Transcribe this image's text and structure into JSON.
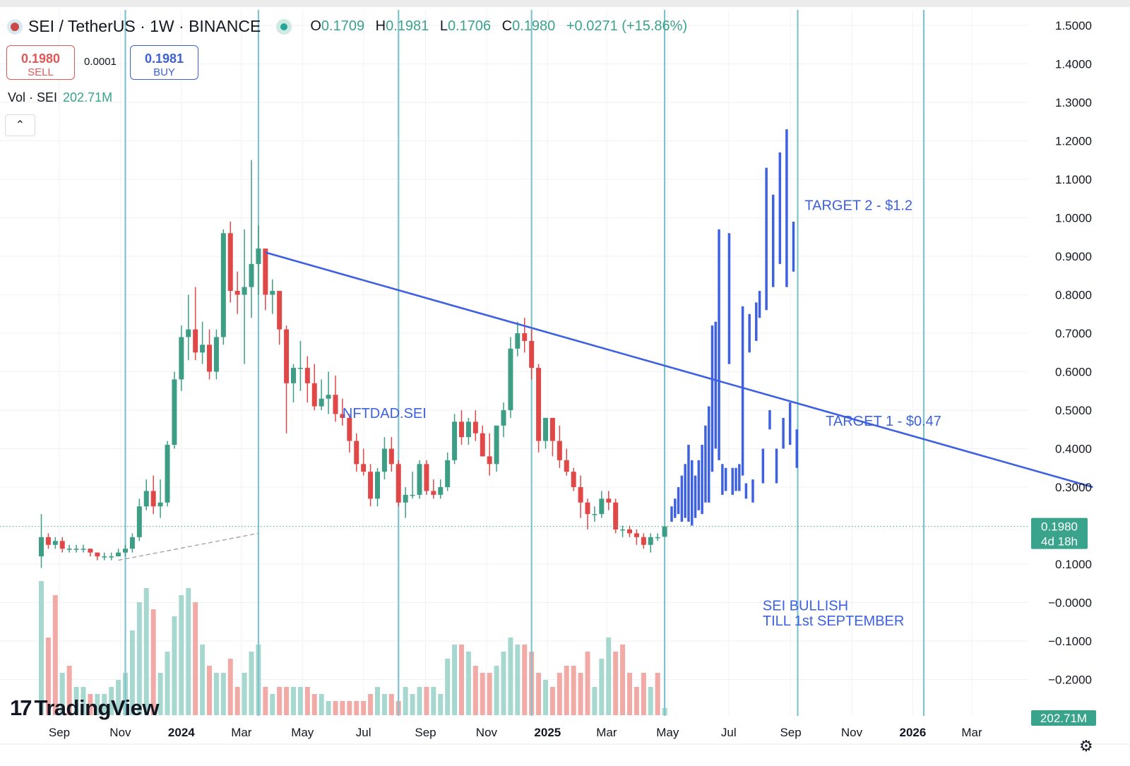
{
  "header": {
    "symbol_title": "SEI / TetherUS · 1W · BINANCE",
    "open_label": "O",
    "open_value": "0.1709",
    "high_label": "H",
    "high_value": "0.1981",
    "low_label": "L",
    "low_value": "0.1706",
    "close_label": "C",
    "close_value": "0.1980",
    "change": "+0.0271 (+15.86%)"
  },
  "trade": {
    "sell_price": "0.1980",
    "sell_label": "SELL",
    "spread": "0.0001",
    "buy_price": "0.1981",
    "buy_label": "BUY"
  },
  "volume_legend": {
    "label": "Vol · SEI",
    "value": "202.71M"
  },
  "collapse_icon": "chevron-up-icon",
  "brand": {
    "name": "TradingView",
    "icon": "tradingview-logo-icon"
  },
  "settings_icon": "gear-icon",
  "colors": {
    "up": "#3d9e85",
    "down": "#e04848",
    "up_vol": "#a7d8cf",
    "down_vol": "#f1aaa6",
    "drawing": "#3d61e0",
    "cycle_line": "#7fc4cc",
    "price_badge": "#3aa38c"
  },
  "chart_data": {
    "type": "candlestick",
    "timeframe": "1W",
    "yaxis": {
      "ticks": [
        "1.5000",
        "1.4000",
        "1.3000",
        "1.2000",
        "1.1000",
        "1.0000",
        "0.9000",
        "0.8000",
        "0.7000",
        "0.6000",
        "0.5000",
        "0.4000",
        "0.3000",
        "0.1000",
        "−0.0000",
        "−0.1000",
        "−0.2000"
      ],
      "ylim": [
        -0.2,
        1.5
      ],
      "current_price_label": "0.1980",
      "countdown_label": "4d 18h",
      "volume_label": "202.71M"
    },
    "xaxis": {
      "labels": [
        {
          "text": "Sep",
          "date": "2023-09-01",
          "bold": false
        },
        {
          "text": "Nov",
          "date": "2023-11-01",
          "bold": false
        },
        {
          "text": "2024",
          "date": "2024-01-01",
          "bold": true
        },
        {
          "text": "Mar",
          "date": "2024-03-01",
          "bold": false
        },
        {
          "text": "May",
          "date": "2024-05-01",
          "bold": false
        },
        {
          "text": "Jul",
          "date": "2024-07-01",
          "bold": false
        },
        {
          "text": "Sep",
          "date": "2024-09-01",
          "bold": false
        },
        {
          "text": "Nov",
          "date": "2024-11-01",
          "bold": false
        },
        {
          "text": "2025",
          "date": "2025-01-01",
          "bold": true
        },
        {
          "text": "Mar",
          "date": "2025-03-01",
          "bold": false
        },
        {
          "text": "May",
          "date": "2025-05-01",
          "bold": false
        },
        {
          "text": "Jul",
          "date": "2025-07-01",
          "bold": false
        },
        {
          "text": "Sep",
          "date": "2025-09-01",
          "bold": false
        },
        {
          "text": "Nov",
          "date": "2025-11-01",
          "bold": false
        },
        {
          "text": "2026",
          "date": "2026-01-01",
          "bold": true
        },
        {
          "text": "Mar",
          "date": "2026-03-01",
          "bold": false
        }
      ]
    },
    "candles_ohlc": [
      [
        0.12,
        0.23,
        0.09,
        0.17
      ],
      [
        0.17,
        0.18,
        0.14,
        0.15
      ],
      [
        0.15,
        0.17,
        0.14,
        0.16
      ],
      [
        0.16,
        0.17,
        0.13,
        0.14
      ],
      [
        0.14,
        0.15,
        0.13,
        0.14
      ],
      [
        0.14,
        0.15,
        0.13,
        0.14
      ],
      [
        0.14,
        0.15,
        0.13,
        0.14
      ],
      [
        0.14,
        0.14,
        0.12,
        0.13
      ],
      [
        0.13,
        0.13,
        0.11,
        0.12
      ],
      [
        0.12,
        0.13,
        0.11,
        0.12
      ],
      [
        0.12,
        0.13,
        0.11,
        0.12
      ],
      [
        0.12,
        0.14,
        0.12,
        0.13
      ],
      [
        0.13,
        0.15,
        0.12,
        0.14
      ],
      [
        0.14,
        0.18,
        0.13,
        0.17
      ],
      [
        0.17,
        0.27,
        0.16,
        0.25
      ],
      [
        0.25,
        0.32,
        0.24,
        0.29
      ],
      [
        0.29,
        0.33,
        0.23,
        0.25
      ],
      [
        0.25,
        0.32,
        0.22,
        0.26
      ],
      [
        0.26,
        0.42,
        0.25,
        0.41
      ],
      [
        0.41,
        0.6,
        0.4,
        0.58
      ],
      [
        0.58,
        0.72,
        0.55,
        0.69
      ],
      [
        0.69,
        0.8,
        0.63,
        0.71
      ],
      [
        0.71,
        0.82,
        0.63,
        0.65
      ],
      [
        0.65,
        0.73,
        0.62,
        0.67
      ],
      [
        0.67,
        0.71,
        0.58,
        0.6
      ],
      [
        0.6,
        0.71,
        0.58,
        0.69
      ],
      [
        0.69,
        0.97,
        0.67,
        0.96
      ],
      [
        0.96,
        0.99,
        0.78,
        0.81
      ],
      [
        0.81,
        0.86,
        0.75,
        0.8
      ],
      [
        0.8,
        0.97,
        0.62,
        0.82
      ],
      [
        0.82,
        1.15,
        0.74,
        0.88
      ],
      [
        0.88,
        0.98,
        0.8,
        0.92
      ],
      [
        0.92,
        0.92,
        0.76,
        0.8
      ],
      [
        0.8,
        0.84,
        0.75,
        0.81
      ],
      [
        0.81,
        0.81,
        0.67,
        0.71
      ],
      [
        0.71,
        0.72,
        0.44,
        0.57
      ],
      [
        0.57,
        0.62,
        0.52,
        0.61
      ],
      [
        0.61,
        0.68,
        0.55,
        0.61
      ],
      [
        0.61,
        0.64,
        0.52,
        0.57
      ],
      [
        0.57,
        0.62,
        0.5,
        0.51
      ],
      [
        0.51,
        0.58,
        0.5,
        0.53
      ],
      [
        0.53,
        0.6,
        0.49,
        0.54
      ],
      [
        0.54,
        0.59,
        0.47,
        0.49
      ],
      [
        0.49,
        0.53,
        0.46,
        0.48
      ],
      [
        0.48,
        0.49,
        0.39,
        0.42
      ],
      [
        0.42,
        0.44,
        0.34,
        0.36
      ],
      [
        0.36,
        0.4,
        0.33,
        0.34
      ],
      [
        0.34,
        0.36,
        0.25,
        0.27
      ],
      [
        0.27,
        0.35,
        0.25,
        0.34
      ],
      [
        0.34,
        0.43,
        0.32,
        0.4
      ],
      [
        0.4,
        0.43,
        0.34,
        0.36
      ],
      [
        0.36,
        0.37,
        0.25,
        0.26
      ],
      [
        0.26,
        0.3,
        0.22,
        0.28
      ],
      [
        0.28,
        0.34,
        0.27,
        0.28
      ],
      [
        0.28,
        0.37,
        0.27,
        0.36
      ],
      [
        0.36,
        0.37,
        0.28,
        0.29
      ],
      [
        0.29,
        0.32,
        0.27,
        0.28
      ],
      [
        0.28,
        0.32,
        0.27,
        0.3
      ],
      [
        0.3,
        0.39,
        0.29,
        0.37
      ],
      [
        0.37,
        0.49,
        0.36,
        0.47
      ],
      [
        0.47,
        0.5,
        0.41,
        0.43
      ],
      [
        0.43,
        0.48,
        0.41,
        0.47
      ],
      [
        0.47,
        0.5,
        0.42,
        0.44
      ],
      [
        0.44,
        0.46,
        0.38,
        0.38
      ],
      [
        0.38,
        0.44,
        0.33,
        0.36
      ],
      [
        0.36,
        0.42,
        0.34,
        0.46
      ],
      [
        0.46,
        0.52,
        0.43,
        0.5
      ],
      [
        0.5,
        0.69,
        0.48,
        0.66
      ],
      [
        0.66,
        0.73,
        0.64,
        0.7
      ],
      [
        0.7,
        0.74,
        0.65,
        0.68
      ],
      [
        0.68,
        0.71,
        0.58,
        0.61
      ],
      [
        0.61,
        0.62,
        0.39,
        0.42
      ],
      [
        0.42,
        0.48,
        0.4,
        0.48
      ],
      [
        0.48,
        0.48,
        0.38,
        0.42
      ],
      [
        0.42,
        0.46,
        0.35,
        0.37
      ],
      [
        0.37,
        0.4,
        0.33,
        0.34
      ],
      [
        0.34,
        0.35,
        0.29,
        0.3
      ],
      [
        0.3,
        0.33,
        0.22,
        0.26
      ],
      [
        0.26,
        0.27,
        0.19,
        0.23
      ],
      [
        0.23,
        0.25,
        0.21,
        0.23
      ],
      [
        0.23,
        0.29,
        0.22,
        0.27
      ],
      [
        0.27,
        0.29,
        0.24,
        0.26
      ],
      [
        0.26,
        0.27,
        0.18,
        0.19
      ],
      [
        0.19,
        0.2,
        0.17,
        0.19
      ],
      [
        0.19,
        0.2,
        0.17,
        0.18
      ],
      [
        0.18,
        0.19,
        0.15,
        0.17
      ],
      [
        0.17,
        0.18,
        0.14,
        0.15
      ],
      [
        0.15,
        0.18,
        0.13,
        0.17
      ],
      [
        0.17,
        0.18,
        0.16,
        0.17
      ],
      [
        0.1709,
        0.1981,
        0.1706,
        0.198
      ]
    ],
    "volume_relative": [
      0.95,
      0.55,
      0.85,
      0.3,
      0.35,
      0.2,
      0.2,
      0.15,
      0.15,
      0.15,
      0.2,
      0.25,
      0.3,
      0.6,
      0.8,
      0.9,
      0.75,
      0.3,
      0.45,
      0.7,
      0.85,
      0.9,
      0.8,
      0.5,
      0.35,
      0.3,
      0.3,
      0.4,
      0.2,
      0.3,
      0.45,
      0.5,
      0.2,
      0.15,
      0.2,
      0.2,
      0.2,
      0.2,
      0.2,
      0.15,
      0.15,
      0.1,
      0.1,
      0.1,
      0.1,
      0.1,
      0.1,
      0.15,
      0.2,
      0.15,
      0.15,
      0.1,
      0.2,
      0.15,
      0.2,
      0.2,
      0.2,
      0.15,
      0.4,
      0.5,
      0.5,
      0.45,
      0.35,
      0.3,
      0.3,
      0.35,
      0.45,
      0.55,
      0.5,
      0.5,
      0.45,
      0.3,
      0.25,
      0.2,
      0.3,
      0.35,
      0.35,
      0.3,
      0.45,
      0.2,
      0.4,
      0.55,
      0.45,
      0.5,
      0.3,
      0.2,
      0.3,
      0.2,
      0.3,
      0.05
    ],
    "volume_up_flags": [
      1,
      0,
      0,
      1,
      0,
      1,
      1,
      0,
      1,
      1,
      1,
      1,
      1,
      1,
      1,
      1,
      0,
      1,
      1,
      1,
      1,
      1,
      0,
      1,
      0,
      1,
      1,
      0,
      0,
      1,
      1,
      1,
      0,
      1,
      0,
      0,
      1,
      1,
      0,
      0,
      1,
      1,
      0,
      0,
      0,
      0,
      0,
      0,
      1,
      1,
      0,
      0,
      1,
      1,
      1,
      0,
      1,
      1,
      1,
      1,
      0,
      1,
      0,
      0,
      0,
      1,
      1,
      1,
      1,
      0,
      0,
      0,
      1,
      0,
      0,
      0,
      0,
      0,
      0,
      1,
      1,
      1,
      0,
      0,
      0,
      0,
      0,
      1,
      0,
      1
    ],
    "projection_bars": [
      [
        0.21,
        0.25
      ],
      [
        0.22,
        0.27
      ],
      [
        0.23,
        0.3
      ],
      [
        0.21,
        0.33
      ],
      [
        0.22,
        0.36
      ],
      [
        0.21,
        0.41
      ],
      [
        0.2,
        0.37
      ],
      [
        0.22,
        0.33
      ],
      [
        0.24,
        0.37
      ],
      [
        0.23,
        0.41
      ],
      [
        0.26,
        0.46
      ],
      [
        0.26,
        0.51
      ],
      [
        0.34,
        0.72
      ],
      [
        0.4,
        0.73
      ],
      [
        0.37,
        0.97
      ],
      [
        0.28,
        0.36
      ],
      [
        0.29,
        0.35
      ],
      [
        0.62,
        0.96
      ],
      [
        0.28,
        0.35
      ],
      [
        0.29,
        0.35
      ],
      [
        0.29,
        0.36
      ],
      [
        0.33,
        0.77
      ],
      [
        0.27,
        0.31
      ],
      [
        0.65,
        0.75
      ],
      [
        0.26,
        0.32
      ],
      [
        0.68,
        0.78
      ],
      [
        0.74,
        0.81
      ],
      [
        0.31,
        0.4
      ],
      [
        0.76,
        1.13
      ],
      [
        0.45,
        0.5
      ],
      [
        0.82,
        1.06
      ],
      [
        0.31,
        0.4
      ],
      [
        0.88,
        1.17
      ],
      [
        0.4,
        0.48
      ],
      [
        0.82,
        1.23
      ],
      [
        0.41,
        0.52
      ],
      [
        0.86,
        0.99
      ],
      [
        0.35,
        0.45
      ]
    ],
    "trendlines": [
      {
        "name": "descending-trendline",
        "from": [
          "2024-03-25",
          0.91
        ],
        "to": [
          "2026-06-30",
          0.3
        ],
        "style": "solid"
      },
      {
        "name": "dashed-support-line",
        "from": [
          "2023-10-30",
          0.11
        ],
        "to": [
          "2024-03-18",
          0.18
        ],
        "style": "dashed"
      }
    ],
    "cycle_lines": [
      "2023-11-06",
      "2024-03-18",
      "2024-08-05",
      "2024-12-16",
      "2025-04-28",
      "2025-09-08",
      "2026-01-12"
    ],
    "annotations": [
      {
        "text": "NFTDAD.SEI",
        "date": "2024-06-10",
        "price": 0.48
      },
      {
        "text": "TARGET 2 - $1.2",
        "date": "2025-09-15",
        "price": 1.02
      },
      {
        "text": "TARGET 1 - $0.47",
        "date": "2025-10-06",
        "price": 0.46
      },
      {
        "text": "SEI BULLISH",
        "date": "2025-08-04",
        "price": -0.02
      },
      {
        "text": "TILL 1st SEPTEMBER",
        "date": "2025-08-04",
        "price": -0.06
      }
    ],
    "current_price": 0.198
  }
}
